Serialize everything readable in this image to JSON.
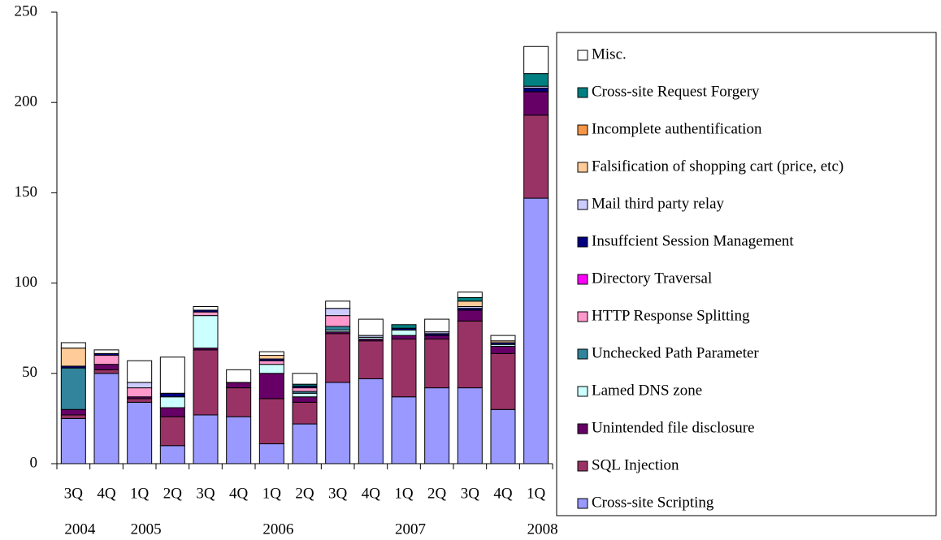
{
  "chart_data": {
    "type": "stacked_bar",
    "categories": [
      "3Q",
      "4Q",
      "1Q",
      "2Q",
      "3Q",
      "4Q",
      "1Q",
      "2Q",
      "3Q",
      "4Q",
      "1Q",
      "2Q",
      "3Q",
      "4Q",
      "1Q"
    ],
    "years": [
      "2004",
      null,
      "2005",
      null,
      null,
      null,
      "2006",
      null,
      null,
      null,
      "2007",
      null,
      null,
      null,
      "2008"
    ],
    "ylim": [
      0,
      250
    ],
    "yticks": [
      0,
      50,
      100,
      150,
      200,
      250
    ],
    "legend": "right",
    "series": [
      {
        "name": "Cross-site Scripting",
        "color": "#9999ff",
        "values": [
          25,
          50,
          34,
          10,
          27,
          26,
          11,
          22,
          45,
          47,
          37,
          42,
          42,
          30,
          147
        ]
      },
      {
        "name": "SQL Injection",
        "color": "#993366",
        "values": [
          2,
          2,
          2,
          16,
          36,
          16,
          25,
          12,
          27,
          21,
          32,
          27,
          37,
          31,
          46
        ]
      },
      {
        "name": "Unintended file disclosure",
        "color": "#660066",
        "values": [
          3,
          3,
          1,
          5,
          1,
          3,
          14,
          3,
          1,
          1,
          2,
          2,
          6,
          4,
          13
        ]
      },
      {
        "name": "Lamed DNS zone",
        "color": "#ccffff",
        "values": [
          0,
          0,
          0,
          6,
          18,
          0,
          5,
          2,
          1,
          1,
          3,
          0,
          0,
          1,
          0
        ]
      },
      {
        "name": "Unchecked Path Parameter",
        "color": "#31849b",
        "values": [
          23,
          0,
          0,
          0,
          0,
          0,
          0,
          1,
          2,
          0,
          0,
          0,
          0,
          0,
          0
        ]
      },
      {
        "name": "HTTP Response Splitting",
        "color": "#ff99cc",
        "values": [
          0,
          5,
          5,
          0,
          2,
          0,
          2,
          2,
          6,
          0,
          0,
          0,
          0,
          0,
          0
        ]
      },
      {
        "name": "Directory Traversal",
        "color": "#ff00ff",
        "values": [
          0,
          0,
          0,
          0,
          0,
          0,
          0,
          0,
          0,
          0,
          0,
          0,
          0,
          0,
          0
        ]
      },
      {
        "name": "Insuffcient Session Management",
        "color": "#000080",
        "values": [
          1,
          1,
          0,
          2,
          1,
          0,
          1,
          1,
          0,
          0,
          1,
          1,
          1,
          1,
          2
        ]
      },
      {
        "name": "Mail third party relay",
        "color": "#ccccff",
        "values": [
          0,
          0,
          3,
          0,
          0,
          0,
          0,
          0,
          4,
          1,
          0,
          1,
          1,
          0,
          1
        ]
      },
      {
        "name": "Falsification of shopping cart (price, etc)",
        "color": "#ffcc99",
        "values": [
          10,
          0,
          0,
          0,
          0,
          0,
          2,
          0,
          0,
          0,
          0,
          0,
          3,
          1,
          0
        ]
      },
      {
        "name": "Incomplete authentification",
        "color": "#f79646",
        "values": [
          0,
          0,
          0,
          0,
          0,
          0,
          0,
          0,
          0,
          0,
          0,
          0,
          0,
          0,
          0
        ]
      },
      {
        "name": "Cross-site Request Forgery",
        "color": "#008080",
        "values": [
          0,
          0,
          0,
          0,
          0,
          0,
          0,
          1,
          0,
          0,
          2,
          0,
          2,
          0,
          7
        ]
      },
      {
        "name": "Misc.",
        "color": "#ffffff",
        "values": [
          3,
          2,
          12,
          20,
          2,
          7,
          2,
          6,
          4,
          9,
          0,
          7,
          3,
          3,
          15
        ]
      }
    ]
  }
}
